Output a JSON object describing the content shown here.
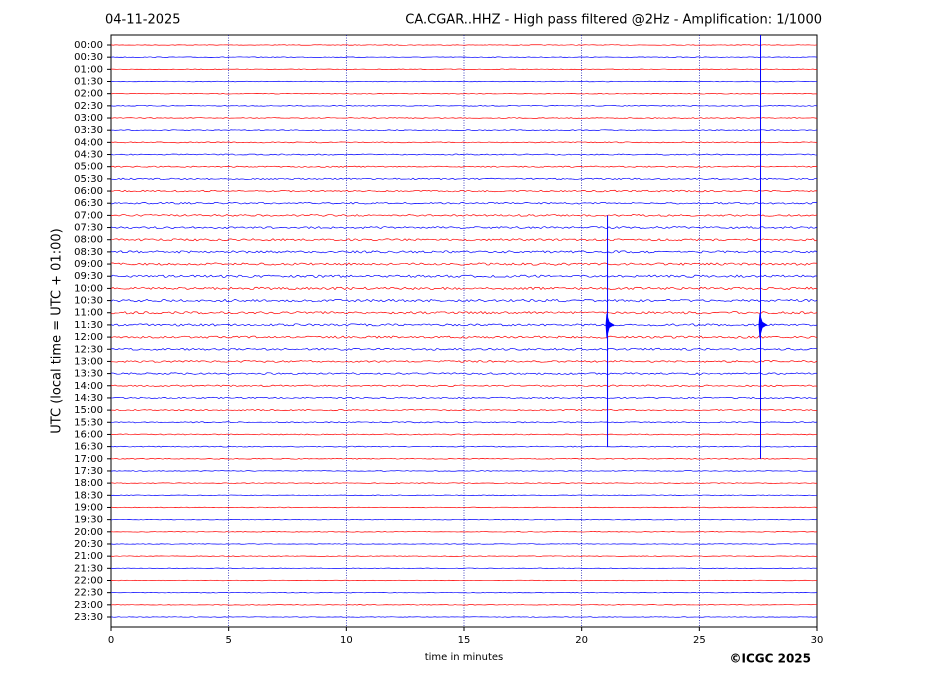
{
  "chart_data": {
    "type": "helicorder",
    "title": "CA.CGAR..HHZ - High pass filtered @2Hz - Amplification: 1/1000",
    "date": "04-11-2025",
    "y_label": "UTC (local time = UTC + 01:00)",
    "x_label": "time in minutes",
    "credit": "©ICGC 2025",
    "xlim": [
      0,
      30
    ],
    "xticks": [
      0,
      5,
      10,
      15,
      20,
      25,
      30
    ],
    "grid": true,
    "grid_color": "#0000aa",
    "colors": [
      "#ff0000",
      "#0000ff"
    ],
    "rows": [
      "00:00",
      "00:30",
      "01:00",
      "01:30",
      "02:00",
      "02:30",
      "03:00",
      "03:30",
      "04:00",
      "04:30",
      "05:00",
      "05:30",
      "06:00",
      "06:30",
      "07:00",
      "07:30",
      "08:00",
      "08:30",
      "09:00",
      "09:30",
      "10:00",
      "10:30",
      "11:00",
      "11:30",
      "12:00",
      "12:30",
      "13:00",
      "13:30",
      "14:00",
      "14:30",
      "15:00",
      "15:30",
      "16:00",
      "16:30",
      "17:00",
      "17:30",
      "18:00",
      "18:30",
      "19:00",
      "19:30",
      "20:00",
      "20:30",
      "21:00",
      "21:30",
      "22:00",
      "22:30",
      "23:00",
      "23:30"
    ],
    "events": [
      {
        "x": 21.1,
        "start_row": 14,
        "end_row": 33,
        "peak_row": 23
      },
      {
        "x": 27.6,
        "start_row": 0,
        "end_row": 34,
        "peak_row": 23
      }
    ]
  }
}
